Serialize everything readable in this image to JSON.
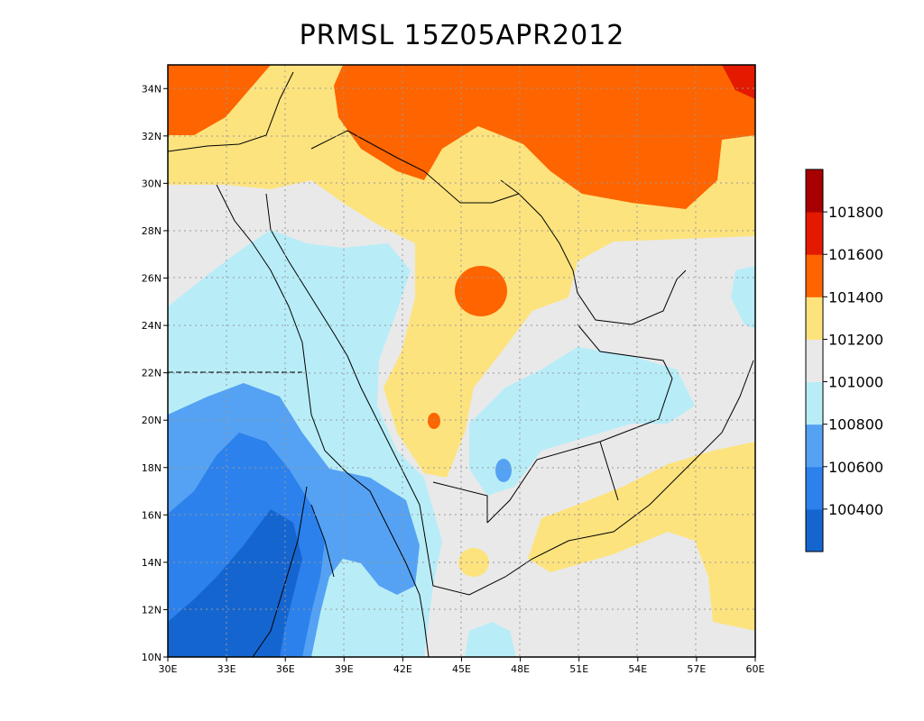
{
  "title": "PRMSL 15Z05APR2012",
  "map": {
    "lon_range": [
      30,
      60
    ],
    "lat_range": [
      10,
      35
    ],
    "x_ticks": [
      "30E",
      "33E",
      "36E",
      "39E",
      "42E",
      "45E",
      "48E",
      "51E",
      "54E",
      "57E",
      "60E"
    ],
    "y_ticks": [
      "10N",
      "12N",
      "14N",
      "16N",
      "18N",
      "20N",
      "22N",
      "24N",
      "26N",
      "28N",
      "30N",
      "32N",
      "34N"
    ],
    "grid": "dotted"
  },
  "colorbar": {
    "colors": [
      "#1565d0",
      "#2c81ec",
      "#55a2f4",
      "#b8edf8",
      "#e9e9e9",
      "#fde37e",
      "#fe6400",
      "#e31a00",
      "#a80000"
    ],
    "labels": [
      "100400",
      "100600",
      "100800",
      "101000",
      "101200",
      "101400",
      "101600",
      "101800"
    ]
  }
}
